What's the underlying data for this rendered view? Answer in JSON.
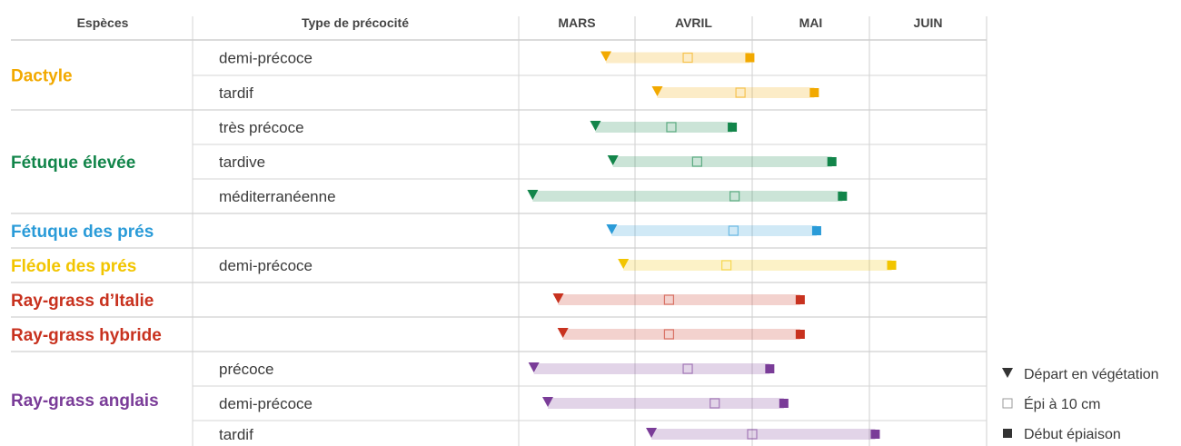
{
  "chart_data": {
    "type": "gantt",
    "headers": {
      "species": "Espèces",
      "type": "Type de précocité"
    },
    "months": [
      "MARS",
      "AVRIL",
      "MAI",
      "JUIN"
    ],
    "legend": [
      {
        "label": "Départ en végétation",
        "marker": "triangle"
      },
      {
        "label": "Épi à 10 cm",
        "marker": "open-square"
      },
      {
        "label": "Début épiaison",
        "marker": "filled-square"
      }
    ],
    "species": [
      {
        "name": "Dactyle",
        "color": "#f2a900",
        "rows": [
          {
            "type": "demi-précoce",
            "start": 0.75,
            "epi": 1.45,
            "heading": 1.98
          },
          {
            "type": "tardif",
            "start": 1.19,
            "epi": 1.9,
            "heading": 2.53
          }
        ]
      },
      {
        "name": "Fétuque élevée",
        "color": "#12854a",
        "rows": [
          {
            "type": "très précoce",
            "start": 0.66,
            "epi": 1.31,
            "heading": 1.83
          },
          {
            "type": "tardive",
            "start": 0.81,
            "epi": 1.53,
            "heading": 2.68
          },
          {
            "type": "méditerranéenne",
            "start": 0.12,
            "epi": 1.85,
            "heading": 2.77
          }
        ]
      },
      {
        "name": "Fétuque des prés",
        "color": "#2a9bd8",
        "rows": [
          {
            "type": "",
            "start": 0.8,
            "epi": 1.84,
            "heading": 2.55
          }
        ]
      },
      {
        "name": "Fléole des prés",
        "color": "#f2c500",
        "rows": [
          {
            "type": "demi-précoce",
            "start": 0.9,
            "epi": 1.78,
            "heading": 3.19
          }
        ]
      },
      {
        "name": "Ray-grass d’Italie",
        "color": "#c8321f",
        "rows": [
          {
            "type": "",
            "start": 0.34,
            "epi": 1.29,
            "heading": 2.41
          }
        ]
      },
      {
        "name": "Ray-grass hybride",
        "color": "#c8321f",
        "rows": [
          {
            "type": "",
            "start": 0.38,
            "epi": 1.29,
            "heading": 2.41
          }
        ]
      },
      {
        "name": "Ray-grass anglais",
        "color": "#7a3c98",
        "rows": [
          {
            "type": "précoce",
            "start": 0.13,
            "epi": 1.45,
            "heading": 2.15
          },
          {
            "type": "demi-précoce",
            "start": 0.25,
            "epi": 1.68,
            "heading": 2.27
          },
          {
            "type": "tardif",
            "start": 1.14,
            "epi": 2.0,
            "heading": 3.05
          }
        ]
      }
    ]
  }
}
